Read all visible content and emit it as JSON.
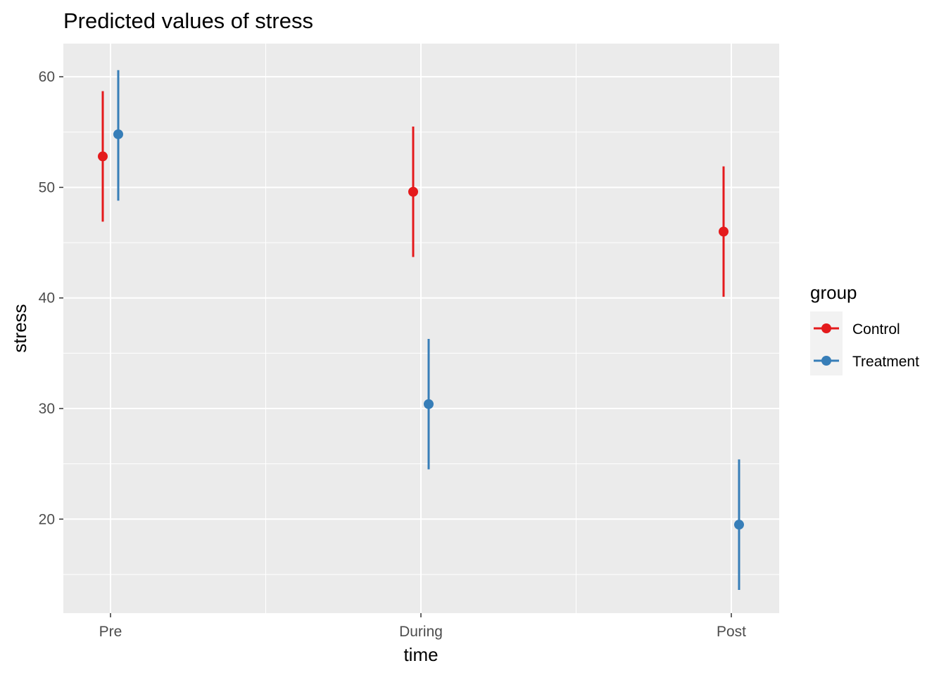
{
  "chart_data": {
    "type": "scatter",
    "title": "Predicted values of stress",
    "xlabel": "time",
    "ylabel": "stress",
    "categories": [
      "Pre",
      "During",
      "Post"
    ],
    "y_ticks": [
      "20",
      "30",
      "40",
      "50",
      "60"
    ],
    "ylim": [
      11.5,
      63.0
    ],
    "grid": true,
    "legend": {
      "title": "group",
      "position": "right"
    },
    "series": [
      {
        "name": "Control",
        "color": "#e41a1c",
        "values": [
          52.8,
          49.6,
          46.0
        ],
        "ci_low": [
          46.9,
          43.7,
          40.1
        ],
        "ci_high": [
          58.7,
          55.5,
          51.9
        ]
      },
      {
        "name": "Treatment",
        "color": "#377eb8",
        "values": [
          54.8,
          30.4,
          19.5
        ],
        "ci_low": [
          48.8,
          24.5,
          13.6
        ],
        "ci_high": [
          60.6,
          36.3,
          25.4
        ]
      }
    ]
  }
}
